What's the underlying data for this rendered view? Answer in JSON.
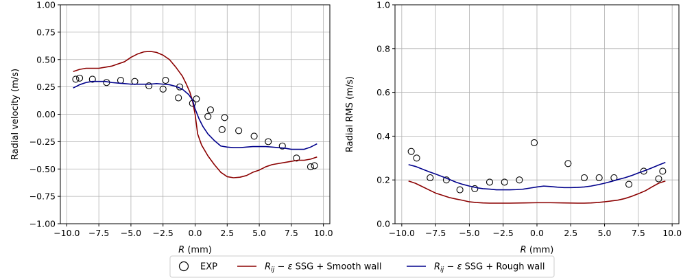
{
  "chart_data": [
    {
      "type": "line",
      "xlabel": "R (mm)",
      "ylabel": "Radial velocity (m/s)",
      "xlim": [
        -10.5,
        10.5
      ],
      "ylim": [
        -1.0,
        1.0
      ],
      "xticks": [
        -10.0,
        -7.5,
        -5.0,
        -2.5,
        0.0,
        2.5,
        5.0,
        7.5,
        10.0
      ],
      "xtick_labels": [
        "−10.0",
        "−7.5",
        "−5.0",
        "−2.5",
        "0.0",
        "2.5",
        "5.0",
        "7.5",
        "10.0"
      ],
      "yticks": [
        -1.0,
        -0.75,
        -0.5,
        -0.25,
        0.0,
        0.25,
        0.5,
        0.75,
        1.0
      ],
      "ytick_labels": [
        "−1.00",
        "−0.75",
        "−0.50",
        "−0.25",
        "0.00",
        "0.25",
        "0.50",
        "0.75",
        "1.00"
      ],
      "grid": true,
      "series": [
        {
          "name": "EXP",
          "kind": "scatter",
          "x": [
            -9.3,
            -9.0,
            -8.0,
            -6.9,
            -5.8,
            -4.7,
            -3.6,
            -2.5,
            -2.3,
            -1.3,
            -1.2,
            -0.2,
            0.1,
            1.0,
            1.2,
            2.1,
            2.3,
            3.4,
            4.6,
            5.7,
            6.8,
            7.9,
            9.0,
            9.3
          ],
          "y": [
            0.32,
            0.33,
            0.32,
            0.29,
            0.31,
            0.3,
            0.26,
            0.23,
            0.31,
            0.15,
            0.25,
            0.1,
            0.14,
            -0.02,
            0.04,
            -0.14,
            -0.03,
            -0.15,
            -0.2,
            -0.25,
            -0.29,
            -0.4,
            -0.48,
            -0.47
          ]
        },
        {
          "name": "Smooth wall",
          "kind": "line",
          "color": "#8b0000",
          "x": [
            -9.5,
            -9.0,
            -8.5,
            -8.0,
            -7.5,
            -7.0,
            -6.5,
            -6.0,
            -5.5,
            -5.0,
            -4.5,
            -4.0,
            -3.5,
            -3.0,
            -2.5,
            -2.0,
            -1.5,
            -1.0,
            -0.7,
            -0.4,
            -0.2,
            0.0,
            0.2,
            0.5,
            1.0,
            1.5,
            2.0,
            2.5,
            3.0,
            3.5,
            4.0,
            4.5,
            5.0,
            5.5,
            6.0,
            6.5,
            7.0,
            7.5,
            8.0,
            8.5,
            9.0,
            9.5
          ],
          "y": [
            0.39,
            0.41,
            0.42,
            0.42,
            0.42,
            0.43,
            0.44,
            0.46,
            0.48,
            0.52,
            0.55,
            0.57,
            0.575,
            0.565,
            0.54,
            0.5,
            0.43,
            0.35,
            0.28,
            0.2,
            0.12,
            0.0,
            -0.18,
            -0.28,
            -0.38,
            -0.46,
            -0.53,
            -0.57,
            -0.58,
            -0.575,
            -0.56,
            -0.53,
            -0.51,
            -0.48,
            -0.46,
            -0.45,
            -0.44,
            -0.43,
            -0.42,
            -0.42,
            -0.41,
            -0.39
          ]
        },
        {
          "name": "Rough wall",
          "kind": "line",
          "color": "#00008b",
          "x": [
            -9.5,
            -9.0,
            -8.5,
            -8.0,
            -7.5,
            -7.0,
            -6.5,
            -6.0,
            -5.5,
            -5.0,
            -4.5,
            -4.0,
            -3.5,
            -3.0,
            -2.5,
            -2.0,
            -1.5,
            -1.0,
            -0.5,
            -0.2,
            0.0,
            0.3,
            0.6,
            1.0,
            1.5,
            2.0,
            2.5,
            3.0,
            3.5,
            4.0,
            4.5,
            5.0,
            5.5,
            6.0,
            6.5,
            7.0,
            7.5,
            8.0,
            8.5,
            9.0,
            9.5
          ],
          "y": [
            0.24,
            0.27,
            0.29,
            0.3,
            0.3,
            0.3,
            0.29,
            0.285,
            0.28,
            0.275,
            0.275,
            0.275,
            0.275,
            0.28,
            0.275,
            0.27,
            0.255,
            0.23,
            0.18,
            0.13,
            0.05,
            -0.04,
            -0.11,
            -0.18,
            -0.24,
            -0.29,
            -0.3,
            -0.305,
            -0.305,
            -0.3,
            -0.295,
            -0.295,
            -0.295,
            -0.3,
            -0.305,
            -0.31,
            -0.32,
            -0.32,
            -0.32,
            -0.3,
            -0.27
          ]
        }
      ]
    },
    {
      "type": "line",
      "xlabel": "R (mm)",
      "ylabel": "Radial RMS (m/s)",
      "xlim": [
        -10.5,
        10.5
      ],
      "ylim": [
        0.0,
        1.0
      ],
      "xticks": [
        -10.0,
        -7.5,
        -5.0,
        -2.5,
        0.0,
        2.5,
        5.0,
        7.5,
        10.0
      ],
      "xtick_labels": [
        "−10.0",
        "−7.5",
        "−5.0",
        "−2.5",
        "0.0",
        "2.5",
        "5.0",
        "7.5",
        "10.0"
      ],
      "yticks": [
        0.0,
        0.2,
        0.4,
        0.6,
        0.8,
        1.0
      ],
      "ytick_labels": [
        "0.0",
        "0.2",
        "0.4",
        "0.6",
        "0.8",
        "1.0"
      ],
      "grid": true,
      "series": [
        {
          "name": "EXP",
          "kind": "scatter",
          "x": [
            -9.3,
            -8.9,
            -7.9,
            -6.7,
            -5.7,
            -4.6,
            -3.5,
            -2.4,
            -1.3,
            -0.2,
            2.3,
            3.5,
            4.6,
            5.7,
            6.8,
            7.9,
            9.0,
            9.3
          ],
          "y": [
            0.33,
            0.3,
            0.21,
            0.2,
            0.155,
            0.16,
            0.19,
            0.19,
            0.2,
            0.37,
            0.275,
            0.21,
            0.21,
            0.21,
            0.18,
            0.24,
            0.205,
            0.24
          ]
        },
        {
          "name": "Smooth wall",
          "kind": "line",
          "color": "#8b0000",
          "x": [
            -9.5,
            -9.0,
            -8.5,
            -8.0,
            -7.5,
            -7.0,
            -6.5,
            -6.0,
            -5.5,
            -5.0,
            -4.5,
            -4.0,
            -3.5,
            -3.0,
            -2.0,
            -1.0,
            0.0,
            1.0,
            2.0,
            3.0,
            3.5,
            4.0,
            4.5,
            5.0,
            5.5,
            6.0,
            6.5,
            7.0,
            7.5,
            8.0,
            8.5,
            9.0,
            9.5
          ],
          "y": [
            0.195,
            0.185,
            0.17,
            0.155,
            0.14,
            0.13,
            0.12,
            0.113,
            0.107,
            0.1,
            0.097,
            0.095,
            0.094,
            0.094,
            0.094,
            0.095,
            0.096,
            0.096,
            0.095,
            0.094,
            0.094,
            0.095,
            0.097,
            0.1,
            0.104,
            0.108,
            0.115,
            0.125,
            0.137,
            0.15,
            0.168,
            0.185,
            0.195
          ]
        },
        {
          "name": "Rough wall",
          "kind": "line",
          "color": "#00008b",
          "x": [
            -9.5,
            -9.0,
            -8.5,
            -8.0,
            -7.5,
            -7.0,
            -6.5,
            -6.0,
            -5.5,
            -5.0,
            -4.5,
            -4.0,
            -3.5,
            -3.0,
            -2.5,
            -2.0,
            -1.5,
            -1.0,
            -0.5,
            0.0,
            0.5,
            1.0,
            1.5,
            2.0,
            2.5,
            3.0,
            3.5,
            4.0,
            4.5,
            5.0,
            5.5,
            6.0,
            6.5,
            7.0,
            7.5,
            8.0,
            8.5,
            9.0,
            9.5
          ],
          "y": [
            0.27,
            0.262,
            0.25,
            0.238,
            0.227,
            0.215,
            0.203,
            0.19,
            0.18,
            0.172,
            0.165,
            0.16,
            0.158,
            0.155,
            0.155,
            0.155,
            0.156,
            0.158,
            0.163,
            0.168,
            0.172,
            0.17,
            0.167,
            0.165,
            0.165,
            0.166,
            0.168,
            0.172,
            0.178,
            0.185,
            0.193,
            0.202,
            0.21,
            0.22,
            0.232,
            0.243,
            0.255,
            0.268,
            0.28
          ]
        }
      ]
    }
  ],
  "legend": {
    "placement": "bottom-center",
    "entries": [
      {
        "label": "EXP",
        "kind": "marker"
      },
      {
        "label": "Rij − ε SSG + Smooth wall",
        "kind": "line",
        "color": "#8b0000",
        "label_parts": [
          "R",
          "ij",
          " − ",
          "ε",
          " SSG + Smooth wall"
        ]
      },
      {
        "label": "Rij − ε SSG + Rough wall",
        "kind": "line",
        "color": "#00008b",
        "label_parts": [
          "R",
          "ij",
          " − ",
          "ε",
          " SSG + Rough wall"
        ]
      }
    ]
  },
  "colors": {
    "grid": "#b0b0b0",
    "axis": "#000000",
    "marker_edge": "#000000"
  }
}
